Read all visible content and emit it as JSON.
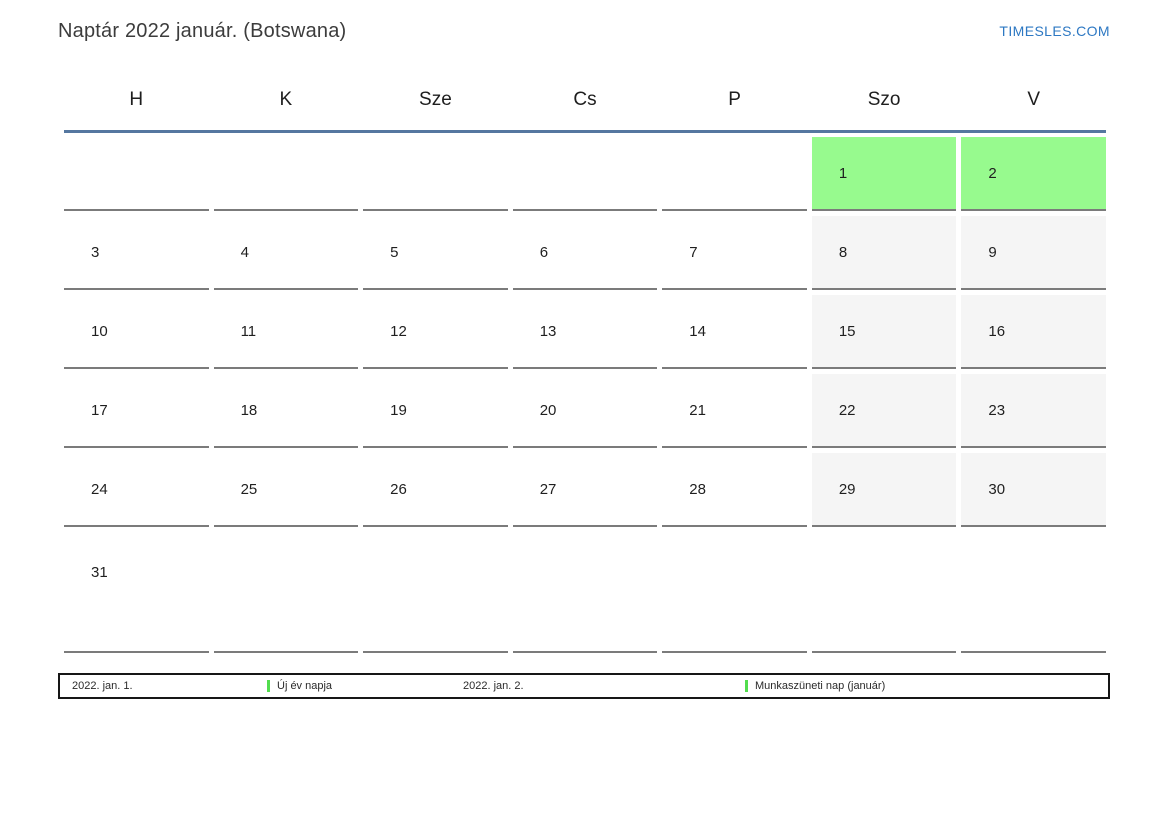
{
  "header": {
    "title": "Naptár 2022 január. (Botswana)",
    "brand": "TIMESLES.COM"
  },
  "calendar": {
    "weekday_headers": [
      "H",
      "K",
      "Sze",
      "Cs",
      "P",
      "Szo",
      "V"
    ],
    "cells": [
      {
        "day": "",
        "type": "empty"
      },
      {
        "day": "",
        "type": "empty"
      },
      {
        "day": "",
        "type": "empty"
      },
      {
        "day": "",
        "type": "empty"
      },
      {
        "day": "",
        "type": "empty"
      },
      {
        "day": "1",
        "type": "holiday"
      },
      {
        "day": "2",
        "type": "holiday"
      },
      {
        "day": "3",
        "type": "workday"
      },
      {
        "day": "4",
        "type": "workday"
      },
      {
        "day": "5",
        "type": "workday"
      },
      {
        "day": "6",
        "type": "workday"
      },
      {
        "day": "7",
        "type": "workday"
      },
      {
        "day": "8",
        "type": "weekend"
      },
      {
        "day": "9",
        "type": "weekend"
      },
      {
        "day": "10",
        "type": "workday"
      },
      {
        "day": "11",
        "type": "workday"
      },
      {
        "day": "12",
        "type": "workday"
      },
      {
        "day": "13",
        "type": "workday"
      },
      {
        "day": "14",
        "type": "workday"
      },
      {
        "day": "15",
        "type": "weekend"
      },
      {
        "day": "16",
        "type": "weekend"
      },
      {
        "day": "17",
        "type": "workday"
      },
      {
        "day": "18",
        "type": "workday"
      },
      {
        "day": "19",
        "type": "workday"
      },
      {
        "day": "20",
        "type": "workday"
      },
      {
        "day": "21",
        "type": "workday"
      },
      {
        "day": "22",
        "type": "weekend"
      },
      {
        "day": "23",
        "type": "weekend"
      },
      {
        "day": "24",
        "type": "workday"
      },
      {
        "day": "25",
        "type": "workday"
      },
      {
        "day": "26",
        "type": "workday"
      },
      {
        "day": "27",
        "type": "workday"
      },
      {
        "day": "28",
        "type": "workday"
      },
      {
        "day": "29",
        "type": "weekend"
      },
      {
        "day": "30",
        "type": "weekend"
      },
      {
        "day": "31",
        "type": "workday"
      },
      {
        "day": "",
        "type": "empty"
      },
      {
        "day": "",
        "type": "empty"
      },
      {
        "day": "",
        "type": "empty"
      },
      {
        "day": "",
        "type": "empty"
      },
      {
        "day": "",
        "type": "empty"
      },
      {
        "day": "",
        "type": "empty"
      }
    ]
  },
  "legend": {
    "items": [
      {
        "date": "2022. jan. 1.",
        "label": "Új év napja"
      },
      {
        "date": "2022. jan. 2.",
        "label": "Munkaszüneti nap (január)"
      }
    ]
  },
  "colors": {
    "holiday_green": "#97fa8e",
    "weekend_gray": "#f5f5f5",
    "header_line_blue": "#5577a0",
    "brand_blue": "#2d78c3",
    "legend_marker_green": "#52dd4e",
    "cell_border_gray": "#7b7b7b"
  }
}
